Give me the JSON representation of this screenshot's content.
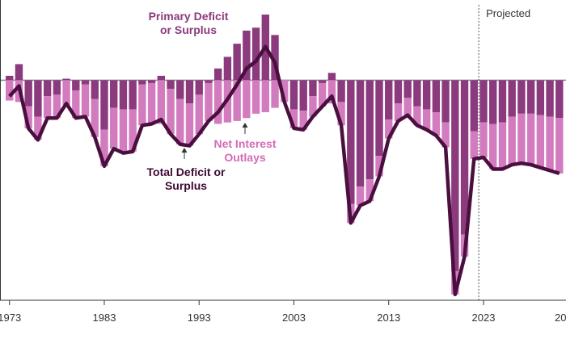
{
  "chart_data": {
    "type": "bar-line",
    "x": [
      1973,
      1974,
      1975,
      1976,
      1977,
      1978,
      1979,
      1980,
      1981,
      1982,
      1983,
      1984,
      1985,
      1986,
      1987,
      1988,
      1989,
      1990,
      1991,
      1992,
      1993,
      1994,
      1995,
      1996,
      1997,
      1998,
      1999,
      2000,
      2001,
      2002,
      2003,
      2004,
      2005,
      2006,
      2007,
      2008,
      2009,
      2010,
      2011,
      2012,
      2013,
      2014,
      2015,
      2016,
      2017,
      2018,
      2019,
      2020,
      2021,
      2022,
      2023,
      2024,
      2025,
      2026,
      2027,
      2028,
      2029,
      2030,
      2031
    ],
    "series": [
      {
        "name": "Primary Deficit or Surplus",
        "color": "#8b3a7e",
        "kind": "bar",
        "values": [
          0.3,
          1.1,
          -1.8,
          -2.5,
          -1.1,
          -1.0,
          0.1,
          -0.7,
          -0.3,
          -1.3,
          -3.4,
          -1.9,
          -2.0,
          -2.0,
          -0.3,
          -0.2,
          0.3,
          -0.6,
          -1.3,
          -1.6,
          -1.0,
          -0.2,
          0.8,
          1.6,
          2.5,
          3.4,
          3.6,
          4.5,
          3.1,
          0.0,
          -2.0,
          -2.1,
          -1.1,
          -0.2,
          0.5,
          -1.5,
          -8.5,
          -7.3,
          -6.8,
          -5.2,
          -2.7,
          -1.6,
          -1.2,
          -1.8,
          -2.0,
          -2.2,
          -2.9,
          -13.1,
          -10.6,
          -3.5,
          -2.9,
          -3.0,
          -2.9,
          -2.5,
          -2.3,
          -2.3,
          -2.4,
          -2.5,
          -2.6
        ]
      },
      {
        "name": "Net Interest Outlays",
        "color": "#d37bbf",
        "kind": "bar",
        "values": [
          -1.4,
          -1.5,
          -1.5,
          -1.6,
          -1.5,
          -1.6,
          -1.7,
          -1.9,
          -2.2,
          -2.6,
          -2.5,
          -2.8,
          -3.0,
          -2.9,
          -2.8,
          -2.8,
          -3.0,
          -3.1,
          -3.1,
          -2.9,
          -2.7,
          -2.6,
          -3.0,
          -2.9,
          -2.8,
          -2.6,
          -2.3,
          -2.2,
          -1.9,
          -1.5,
          -1.3,
          -1.3,
          -1.4,
          -1.6,
          -1.6,
          -1.6,
          -1.3,
          -1.3,
          -1.5,
          -1.4,
          -1.3,
          -1.2,
          -1.2,
          -1.3,
          -1.4,
          -1.6,
          -1.7,
          -1.6,
          -1.5,
          -1.9,
          -2.4,
          -3.1,
          -3.2,
          -3.3,
          -3.4,
          -3.5,
          -3.6,
          -3.7,
          -3.8
        ]
      },
      {
        "name": "Total Deficit or Surplus",
        "color": "#4a0f3f",
        "kind": "line",
        "values": [
          -1.1,
          -0.4,
          -3.3,
          -4.1,
          -2.6,
          -2.6,
          -1.6,
          -2.6,
          -2.5,
          -3.9,
          -5.9,
          -4.7,
          -5.0,
          -4.9,
          -3.1,
          -3.0,
          -2.7,
          -3.7,
          -4.4,
          -4.5,
          -3.7,
          -2.8,
          -2.2,
          -1.3,
          -0.3,
          0.8,
          1.3,
          2.3,
          1.2,
          -1.5,
          -3.3,
          -3.4,
          -2.5,
          -1.8,
          -1.1,
          -3.1,
          -9.8,
          -8.6,
          -8.3,
          -6.6,
          -4.0,
          -2.8,
          -2.4,
          -3.1,
          -3.4,
          -3.8,
          -4.6,
          -14.7,
          -12.1,
          -5.4,
          -5.3,
          -6.1,
          -6.1,
          -5.8,
          -5.7,
          -5.8,
          -6.0,
          -6.2,
          -6.4
        ]
      }
    ],
    "xlim": [
      1972,
      2031.7
    ],
    "xticks": [
      1973,
      1983,
      1993,
      2003,
      2013,
      2023,
      {
        "value": 2033,
        "label": "20"
      }
    ],
    "ylim": [
      -15.1,
      5.5
    ],
    "projection": {
      "from": 2022.5,
      "label": "Projected"
    }
  }
}
